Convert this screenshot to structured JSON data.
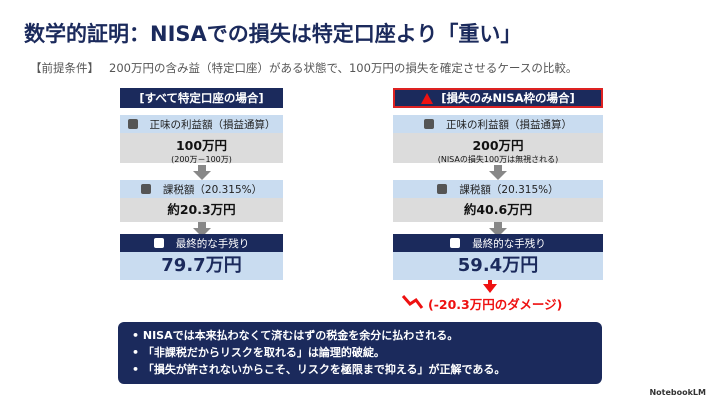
{
  "title": "数学的証明：NISAでの損失は特定口座より「重い」",
  "premise": {
    "label": "【前提条件】",
    "text": "200万円の含み益（特定口座）がある状態で、100万円の損失を確定させるケースの比較。"
  },
  "columns": [
    {
      "header": "[すべて特定口座の場合]",
      "profit": {
        "label": "正味の利益額（損益通算）",
        "value": "100万円",
        "note": "(200万－100万)"
      },
      "tax": {
        "label": "課税額（20.315%）",
        "value": "約20.3万円"
      },
      "net": {
        "label": "最終的な手残り",
        "value": "79.7万円"
      }
    },
    {
      "header": "[損失のみNISA枠の場合]",
      "profit": {
        "label": "正味の利益額（損益通算）",
        "value": "200万円",
        "note": "(NISAの損失100万は無視される)"
      },
      "tax": {
        "label": "課税額（20.315%）",
        "value": "約40.6万円"
      },
      "net": {
        "label": "最終的な手残り",
        "value": "59.4万円"
      }
    }
  ],
  "damage": "(-20.3万円のダメージ)",
  "bullets": [
    "NISAでは本来払わなくて済むはずの税金を余分に払わされる。",
    "「非課税だからリスクを取れる」は論理的破綻。",
    "「損失が許されないからこそ、リスクを極限まで抑える」が正解である。"
  ],
  "footer": "NotebookLM"
}
